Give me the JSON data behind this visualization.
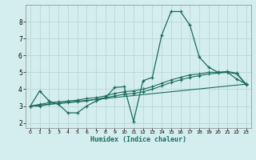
{
  "xlabel": "Humidex (Indice chaleur)",
  "background_color": "#d4eef0",
  "grid_color": "#c0d8da",
  "line_color": "#1a6b5a",
  "xlim": [
    -0.5,
    23.5
  ],
  "ylim": [
    1.7,
    9.0
  ],
  "xticks": [
    0,
    1,
    2,
    3,
    4,
    5,
    6,
    7,
    8,
    9,
    10,
    11,
    12,
    13,
    14,
    15,
    16,
    17,
    18,
    19,
    20,
    21,
    22,
    23
  ],
  "yticks": [
    2,
    3,
    4,
    5,
    6,
    7,
    8
  ],
  "line1_x": [
    0,
    1,
    2,
    3,
    4,
    5,
    6,
    7,
    8,
    9,
    10,
    11,
    12,
    13,
    14,
    15,
    16,
    17,
    18,
    19,
    20,
    21,
    22,
    23
  ],
  "line1_y": [
    3.0,
    3.9,
    3.3,
    3.1,
    2.6,
    2.6,
    3.0,
    3.3,
    3.5,
    4.1,
    4.15,
    2.1,
    4.5,
    4.7,
    7.2,
    8.6,
    8.6,
    7.8,
    5.9,
    5.3,
    5.0,
    5.0,
    4.6,
    4.3
  ],
  "line2_x": [
    0,
    1,
    2,
    3,
    4,
    5,
    6,
    7,
    8,
    9,
    10,
    11,
    12,
    13,
    14,
    15,
    16,
    17,
    18,
    19,
    20,
    21,
    22,
    23
  ],
  "line2_y": [
    3.0,
    3.1,
    3.2,
    3.25,
    3.3,
    3.35,
    3.45,
    3.5,
    3.6,
    3.75,
    3.85,
    3.9,
    4.0,
    4.15,
    4.35,
    4.55,
    4.7,
    4.85,
    4.9,
    5.0,
    5.0,
    5.05,
    4.95,
    4.3
  ],
  "line3_x": [
    0,
    23
  ],
  "line3_y": [
    3.0,
    4.3
  ],
  "line4_x": [
    0,
    1,
    2,
    3,
    4,
    5,
    6,
    7,
    8,
    9,
    10,
    11,
    12,
    13,
    14,
    15,
    16,
    17,
    18,
    19,
    20,
    21,
    22,
    23
  ],
  "line4_y": [
    3.0,
    3.0,
    3.1,
    3.15,
    3.2,
    3.25,
    3.3,
    3.4,
    3.5,
    3.6,
    3.7,
    3.75,
    3.85,
    4.0,
    4.2,
    4.4,
    4.55,
    4.7,
    4.8,
    4.9,
    4.95,
    5.0,
    4.9,
    4.25
  ]
}
